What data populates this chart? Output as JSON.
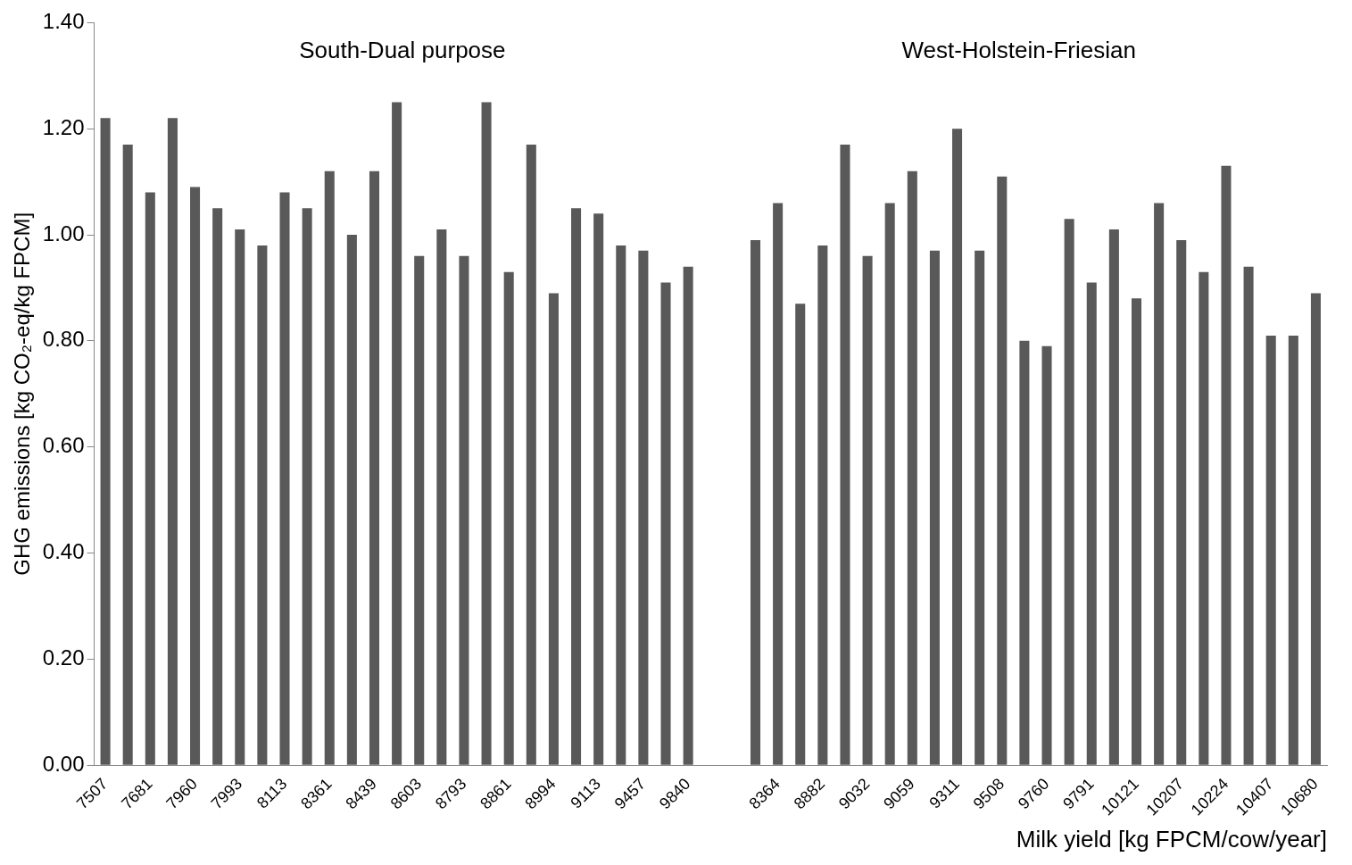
{
  "chart_data": {
    "type": "bar",
    "xlabel": "Milk yield [kg FPCM/cow/year]",
    "ylabel": "GHG emissions [kg CO₂-eq/kg FPCM]",
    "annotations": [
      "South-Dual purpose",
      "West-Holstein-Friesian"
    ],
    "categories": [
      "7507",
      null,
      "7681",
      null,
      "7960",
      null,
      "7993",
      null,
      "8113",
      null,
      "8361",
      null,
      "8439",
      null,
      "8603",
      null,
      "8793",
      null,
      "8861",
      null,
      "8994",
      null,
      "9113",
      null,
      "9457",
      null,
      "9840",
      null,
      null,
      null,
      "8364",
      null,
      "8882",
      null,
      "9032",
      null,
      "9059",
      null,
      "9311",
      null,
      "9508",
      null,
      "9760",
      null,
      "9791",
      null,
      "10121",
      null,
      "10207",
      null,
      "10224",
      null,
      "10407",
      null,
      "10680"
    ],
    "values": [
      1.22,
      1.17,
      1.08,
      1.22,
      1.09,
      1.05,
      1.01,
      0.98,
      1.08,
      1.05,
      1.12,
      1.0,
      1.12,
      1.25,
      0.96,
      1.01,
      0.96,
      1.25,
      0.93,
      1.17,
      0.89,
      1.05,
      1.04,
      0.98,
      0.97,
      0.91,
      0.94,
      null,
      null,
      0.99,
      1.06,
      0.87,
      0.98,
      1.17,
      0.96,
      1.06,
      1.12,
      0.97,
      1.2,
      0.97,
      1.11,
      0.8,
      0.79,
      1.03,
      0.91,
      1.01,
      0.88,
      1.06,
      0.99,
      0.93,
      1.13,
      0.94,
      0.81,
      0.81,
      0.89
    ],
    "color": "#595959",
    "ylim": [
      0,
      1.4
    ],
    "yticks": [
      {
        "value": 0,
        "label": "0.00"
      },
      {
        "value": 0.2,
        "label": "0.20"
      },
      {
        "value": 0.4,
        "label": "0.40"
      },
      {
        "value": 0.6,
        "label": "0.60"
      },
      {
        "value": 0.8,
        "label": "0.80"
      },
      {
        "value": 1,
        "label": "1.00"
      },
      {
        "value": 1.2,
        "label": "1.20"
      },
      {
        "value": 1.4,
        "label": "1.40"
      }
    ],
    "grid": false
  }
}
